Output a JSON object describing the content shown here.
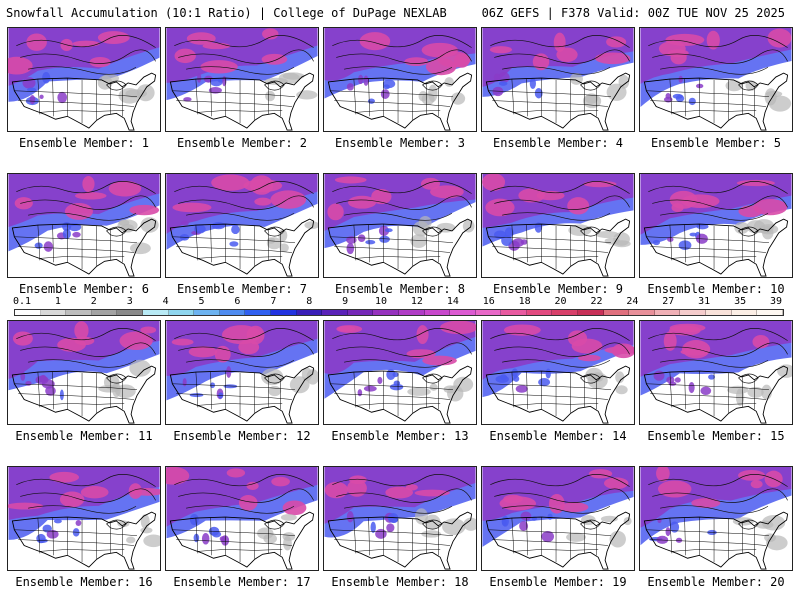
{
  "header": {
    "left_title": "Snowfall Accumulation (10:1 Ratio) | College of DuPage NEXLAB",
    "right_title": "06Z GEFS | F378 Valid: 00Z TUE NOV 25 2025"
  },
  "legend": {
    "ticks": [
      "0.1",
      "1",
      "2",
      "3",
      "4",
      "5",
      "6",
      "7",
      "8",
      "9",
      "10",
      "12",
      "14",
      "16",
      "18",
      "20",
      "22",
      "24",
      "27",
      "31",
      "35",
      "39"
    ],
    "colors": [
      "#ffffff",
      "#d9d9d9",
      "#bdbdbd",
      "#a3a3a3",
      "#8a8a8a",
      "#b8eaf5",
      "#8fd6ef",
      "#6db3f0",
      "#4f8cf0",
      "#3060f0",
      "#2233e0",
      "#3a1fb8",
      "#5a22b8",
      "#7628b8",
      "#9632be",
      "#b03cc6",
      "#c848cc",
      "#dc5ad2",
      "#e868c8",
      "#e85aa0",
      "#e24a80",
      "#d8406a",
      "#c83058",
      "#e0707e",
      "#e8909a",
      "#f0b0b6",
      "#f5cccc",
      "#f9e2da",
      "#fcefe6",
      "#fef8f2"
    ]
  },
  "panels": [
    {
      "label": "Ensemble Member: 1"
    },
    {
      "label": "Ensemble Member: 2"
    },
    {
      "label": "Ensemble Member: 3"
    },
    {
      "label": "Ensemble Member: 4"
    },
    {
      "label": "Ensemble Member: 5"
    },
    {
      "label": "Ensemble Member: 6"
    },
    {
      "label": "Ensemble Member: 7"
    },
    {
      "label": "Ensemble Member: 8"
    },
    {
      "label": "Ensemble Member: 9"
    },
    {
      "label": "Ensemble Member: 10"
    },
    {
      "label": "Ensemble Member: 11"
    },
    {
      "label": "Ensemble Member: 12"
    },
    {
      "label": "Ensemble Member: 13"
    },
    {
      "label": "Ensemble Member: 14"
    },
    {
      "label": "Ensemble Member: 15"
    },
    {
      "label": "Ensemble Member: 16"
    },
    {
      "label": "Ensemble Member: 17"
    },
    {
      "label": "Ensemble Member: 18"
    },
    {
      "label": "Ensemble Member: 19"
    },
    {
      "label": "Ensemble Member: 20"
    }
  ],
  "map_colors": {
    "heavy_snow": "#d84aa8",
    "moderate_snow": "#8a3cc8",
    "light_snow": "#4a5af0",
    "trace_snow": "#b8b8b8",
    "land": "#ffffff",
    "borders": "#000000"
  }
}
